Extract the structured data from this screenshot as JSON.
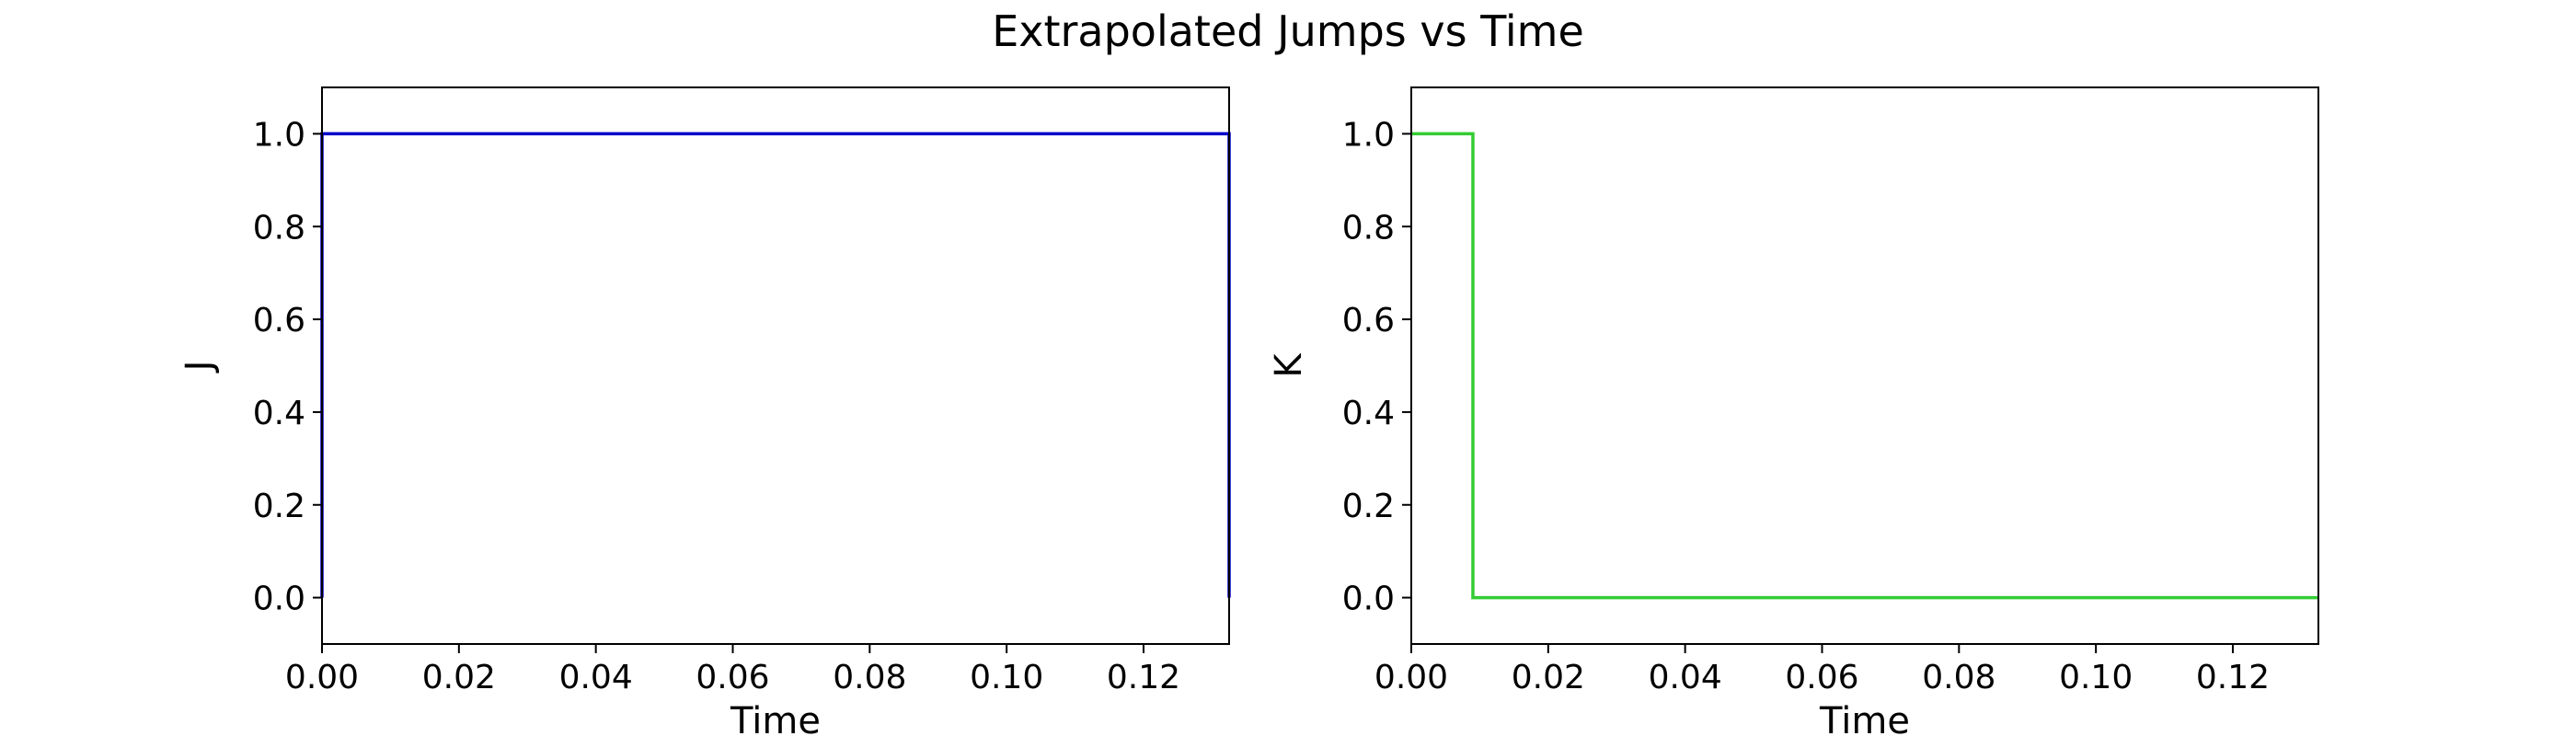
{
  "figure": {
    "title": "Extrapolated Jumps vs Time"
  },
  "chart_data": [
    {
      "type": "line",
      "title": "",
      "xlabel": "Time",
      "ylabel": "J",
      "xlim": [
        0.0,
        0.1325
      ],
      "ylim": [
        -0.1,
        1.1
      ],
      "xticks": [
        0.0,
        0.02,
        0.04,
        0.06,
        0.08,
        0.1,
        0.12
      ],
      "xtick_labels": [
        "0.00",
        "0.02",
        "0.04",
        "0.06",
        "0.08",
        "0.10",
        "0.12"
      ],
      "yticks": [
        0.0,
        0.2,
        0.4,
        0.6,
        0.8,
        1.0
      ],
      "ytick_labels": [
        "0.0",
        "0.2",
        "0.4",
        "0.6",
        "0.8",
        "1.0"
      ],
      "grid": false,
      "series": [
        {
          "color": "#0000cc",
          "step": true,
          "x": [
            0.0,
            0.0,
            0.1325,
            0.1325
          ],
          "y": [
            0.0,
            1.0,
            1.0,
            0.0
          ]
        }
      ]
    },
    {
      "type": "line",
      "title": "",
      "xlabel": "Time",
      "ylabel": "K",
      "xlim": [
        0.0,
        0.1325
      ],
      "ylim": [
        -0.1,
        1.1
      ],
      "xticks": [
        0.0,
        0.02,
        0.04,
        0.06,
        0.08,
        0.1,
        0.12
      ],
      "xtick_labels": [
        "0.00",
        "0.02",
        "0.04",
        "0.06",
        "0.08",
        "0.10",
        "0.12"
      ],
      "yticks": [
        0.0,
        0.2,
        0.4,
        0.6,
        0.8,
        1.0
      ],
      "ytick_labels": [
        "0.0",
        "0.2",
        "0.4",
        "0.6",
        "0.8",
        "1.0"
      ],
      "grid": false,
      "series": [
        {
          "color": "#33cc33",
          "step": true,
          "x": [
            0.0,
            0.009,
            0.009,
            0.1325
          ],
          "y": [
            1.0,
            1.0,
            0.0,
            0.0
          ]
        }
      ]
    }
  ]
}
